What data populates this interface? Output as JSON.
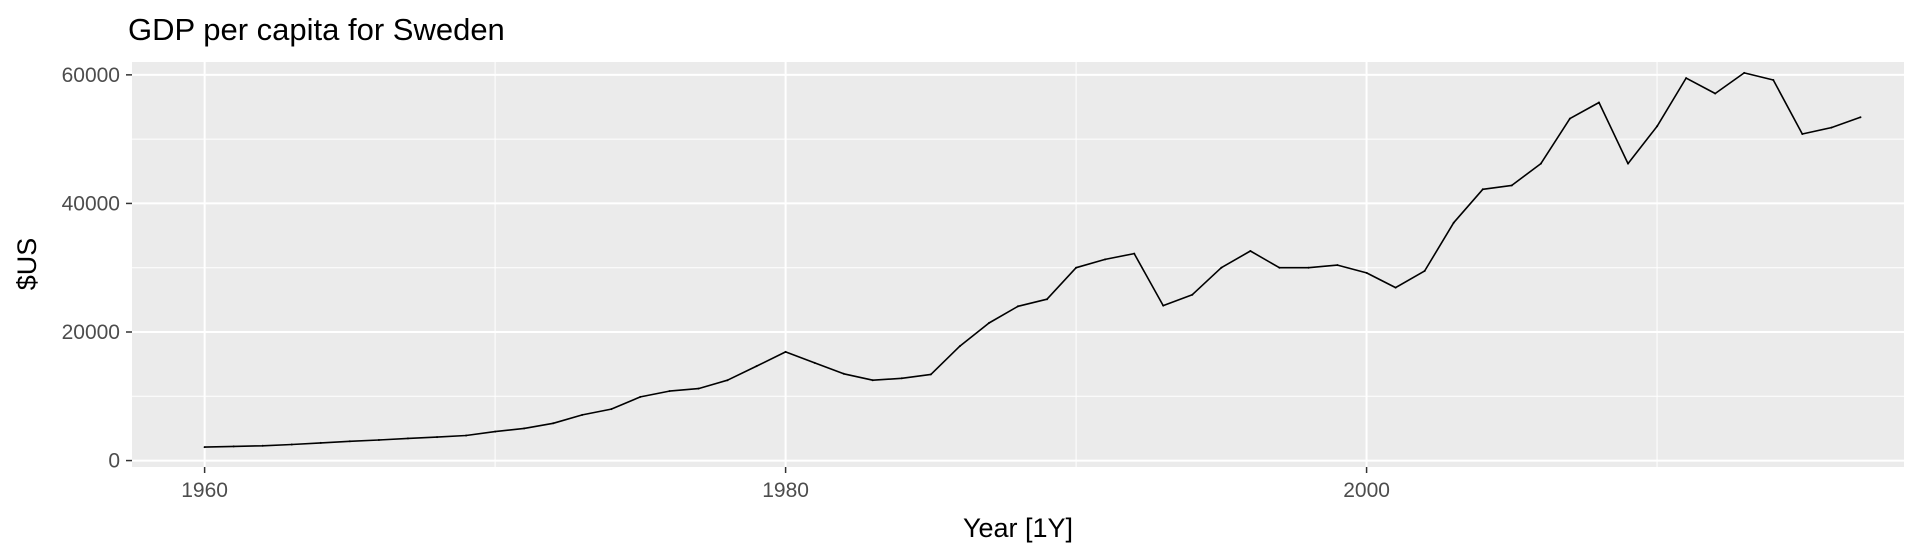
{
  "chart_data": {
    "type": "line",
    "title": "GDP per capita for Sweden",
    "xlabel": "Year [1Y]",
    "ylabel": "$US",
    "xlim": [
      1957.5,
      2018.5
    ],
    "ylim": [
      -1000,
      62000
    ],
    "x_ticks": [
      1960,
      1980,
      2000
    ],
    "x_tick_labels": [
      "1960",
      "1980",
      "2000"
    ],
    "x_minor": [
      1970,
      1990,
      2010
    ],
    "y_ticks": [
      0,
      20000,
      40000,
      60000
    ],
    "y_tick_labels": [
      "0",
      "20000",
      "40000",
      "60000"
    ],
    "y_minor": [
      10000,
      30000,
      50000
    ],
    "grid": true,
    "legend": "none",
    "panel_color": "#ebebeb",
    "line_color": "#000000",
    "series": [
      {
        "x": [
          1960,
          1961,
          1962,
          1963,
          1964,
          1965,
          1966,
          1967,
          1968,
          1969,
          1970,
          1971,
          1972,
          1973,
          1974,
          1975,
          1976,
          1977,
          1978,
          1979,
          1980,
          1981,
          1982,
          1983,
          1984,
          1985,
          1986,
          1987,
          1988,
          1989,
          1990,
          1991,
          1992,
          1993,
          1994,
          1995,
          1996,
          1997,
          1998,
          1999,
          2000,
          2001,
          2002,
          2003,
          2004,
          2005,
          2006,
          2007,
          2008,
          2009,
          2010,
          2011,
          2012,
          2013,
          2014,
          2015,
          2016,
          2017
        ],
        "values": [
          2100,
          2200,
          2300,
          2500,
          2750,
          3000,
          3200,
          3450,
          3650,
          3900,
          4500,
          5000,
          5800,
          7100,
          8000,
          9900,
          10800,
          11200,
          12500,
          14700,
          16900,
          15200,
          13500,
          12500,
          12800,
          13400,
          17800,
          21400,
          24000,
          25100,
          30000,
          31300,
          32200,
          24100,
          25800,
          30000,
          32600,
          30000,
          30000,
          30400,
          29200,
          26900,
          29500,
          37000,
          42200,
          42800,
          46200,
          53200,
          55700,
          46200,
          52000,
          59500,
          57100,
          60300,
          59200,
          50800,
          51800,
          53400
        ]
      }
    ]
  }
}
